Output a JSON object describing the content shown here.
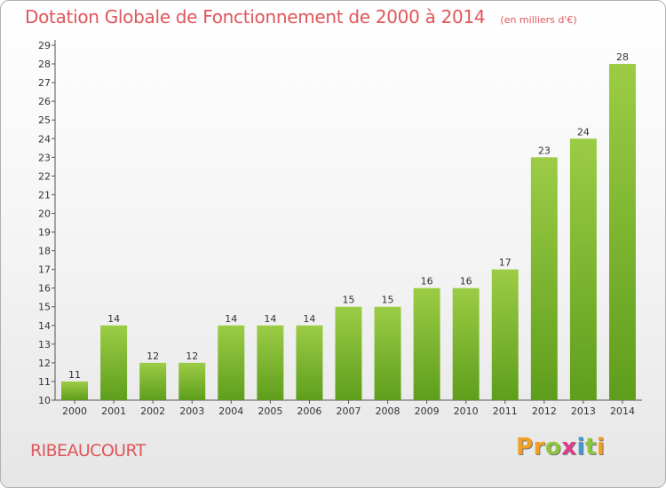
{
  "header": {
    "title": "Dotation Globale de Fonctionnement de 2000 à 2014",
    "subtitle": "(en milliers d'€)"
  },
  "footer": {
    "commune": "RIBEAUCOURT",
    "logo_text": "Proxiti",
    "logo_letters": [
      "P",
      "r",
      "o",
      "x",
      "i",
      "t",
      "i"
    ],
    "logo_colors": [
      "#f0a020",
      "#f0a020",
      "#8cc63f",
      "#e03c8c",
      "#3d9bd9",
      "#8cc63f",
      "#f0a020"
    ]
  },
  "chart_data": {
    "type": "bar",
    "categories": [
      "2000",
      "2001",
      "2002",
      "2003",
      "2004",
      "2005",
      "2006",
      "2007",
      "2008",
      "2009",
      "2010",
      "2011",
      "2012",
      "2013",
      "2014"
    ],
    "values": [
      11,
      14,
      12,
      12,
      14,
      14,
      14,
      15,
      15,
      16,
      16,
      17,
      23,
      24,
      28
    ],
    "title": "Dotation Globale de Fonctionnement de 2000 à 2014",
    "subtitle": "(en milliers d'€)",
    "xlabel": "",
    "ylabel": "",
    "ylim": [
      10,
      29
    ],
    "yticks": [
      10,
      11,
      12,
      13,
      14,
      15,
      16,
      17,
      18,
      19,
      20,
      21,
      22,
      23,
      24,
      25,
      26,
      27,
      28,
      29
    ],
    "grid": false,
    "legend": "none",
    "bar_color_top": "#9ccc45",
    "bar_color_bottom": "#5e9e1c"
  }
}
